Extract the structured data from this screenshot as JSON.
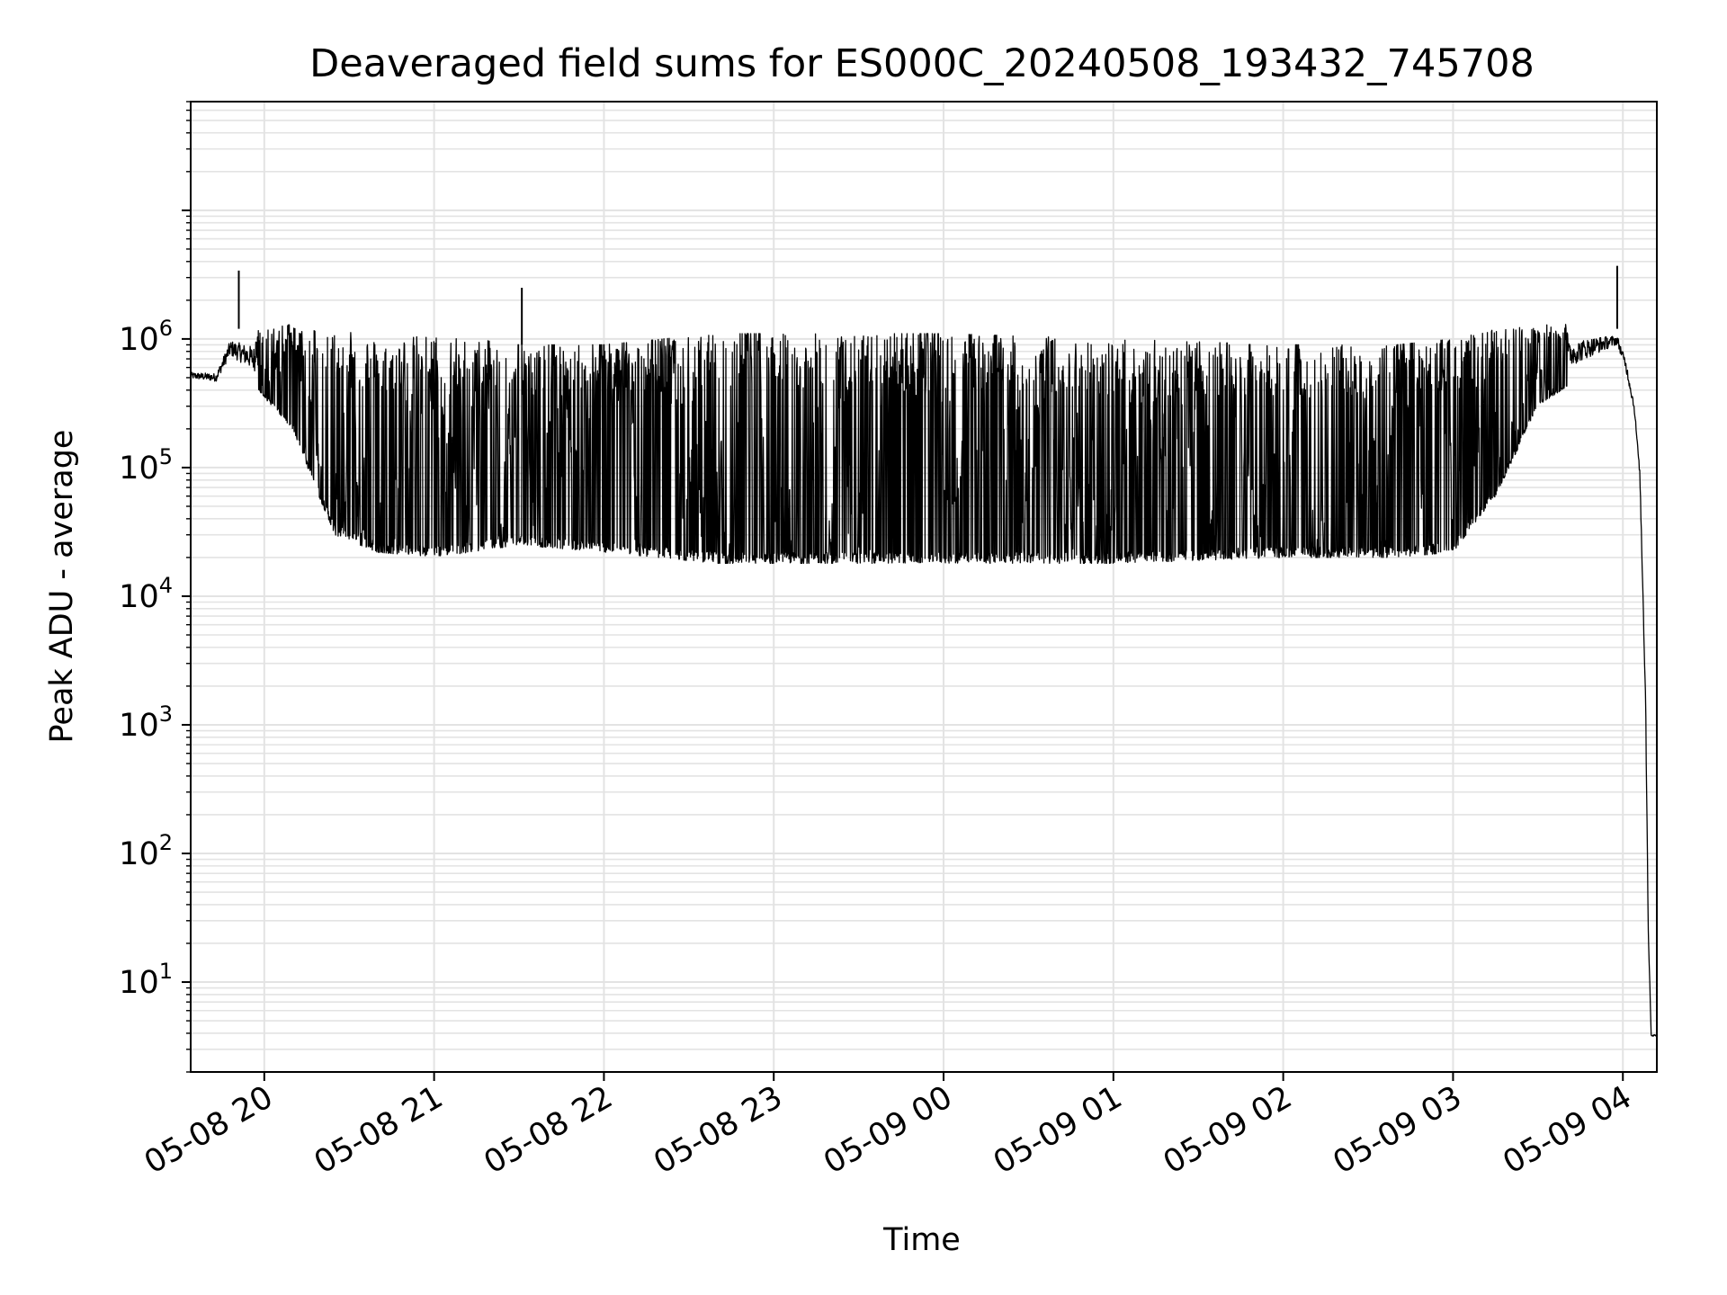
{
  "chart_data": {
    "type": "line",
    "title": "Deaveraged field sums for ES000C_20240508_193432_745708",
    "xlabel": "Time",
    "ylabel": "Peak ADU - average",
    "xlim": [
      "2024-05-08 19:34",
      "2024-05-09 04:12"
    ],
    "ylim": [
      2,
      70000000
    ],
    "yscale": "log",
    "grid": true,
    "line_color": "#000000",
    "x_ticks": [
      {
        "label": "05-08 20",
        "t": "2024-05-08 20:00"
      },
      {
        "label": "05-08 21",
        "t": "2024-05-08 21:00"
      },
      {
        "label": "05-08 22",
        "t": "2024-05-08 22:00"
      },
      {
        "label": "05-08 23",
        "t": "2024-05-08 23:00"
      },
      {
        "label": "05-09 00",
        "t": "2024-05-09 00:00"
      },
      {
        "label": "05-09 01",
        "t": "2024-05-09 01:00"
      },
      {
        "label": "05-09 02",
        "t": "2024-05-09 02:00"
      },
      {
        "label": "05-09 03",
        "t": "2024-05-09 03:00"
      },
      {
        "label": "05-09 04",
        "t": "2024-05-09 04:00"
      }
    ],
    "y_ticks": [
      {
        "base": "10",
        "exp": "1",
        "value": 10
      },
      {
        "base": "10",
        "exp": "2",
        "value": 100
      },
      {
        "base": "10",
        "exp": "3",
        "value": 1000
      },
      {
        "base": "10",
        "exp": "4",
        "value": 10000
      },
      {
        "base": "10",
        "exp": "5",
        "value": 100000
      },
      {
        "base": "10",
        "exp": "6",
        "value": 1000000
      }
    ],
    "envelope": [
      {
        "t": "2024-05-08 19:34",
        "lo": 450000,
        "hi": 600000
      },
      {
        "t": "2024-05-08 19:43",
        "lo": 420000,
        "hi": 600000
      },
      {
        "t": "2024-05-08 19:48",
        "lo": 600000,
        "hi": 1200000
      },
      {
        "t": "2024-05-08 19:52",
        "lo": 500000,
        "hi": 1200000
      },
      {
        "t": "2024-05-08 20:00",
        "lo": 350000,
        "hi": 1200000
      },
      {
        "t": "2024-05-08 20:10",
        "lo": 200000,
        "hi": 1300000
      },
      {
        "t": "2024-05-08 20:18",
        "lo": 70000,
        "hi": 1300000
      },
      {
        "t": "2024-05-08 20:25",
        "lo": 30000,
        "hi": 1200000
      },
      {
        "t": "2024-05-08 20:40",
        "lo": 22000,
        "hi": 1000000
      },
      {
        "t": "2024-05-08 21:00",
        "lo": 20000,
        "hi": 1100000
      },
      {
        "t": "2024-05-08 21:30",
        "lo": 25000,
        "hi": 900000
      },
      {
        "t": "2024-05-08 22:00",
        "lo": 22000,
        "hi": 900000
      },
      {
        "t": "2024-05-08 22:40",
        "lo": 18000,
        "hi": 1100000
      },
      {
        "t": "2024-05-09 00:00",
        "lo": 18000,
        "hi": 1100000
      },
      {
        "t": "2024-05-09 01:00",
        "lo": 18000,
        "hi": 1000000
      },
      {
        "t": "2024-05-09 02:00",
        "lo": 20000,
        "hi": 900000
      },
      {
        "t": "2024-05-09 02:40",
        "lo": 20000,
        "hi": 900000
      },
      {
        "t": "2024-05-09 03:00",
        "lo": 22000,
        "hi": 1000000
      },
      {
        "t": "2024-05-09 03:15",
        "lo": 60000,
        "hi": 1200000
      },
      {
        "t": "2024-05-09 03:30",
        "lo": 300000,
        "hi": 1300000
      },
      {
        "t": "2024-05-09 03:50",
        "lo": 600000,
        "hi": 1300000
      },
      {
        "t": "2024-05-09 03:58",
        "lo": 800000,
        "hi": 1200000
      },
      {
        "t": "2024-05-09 04:01",
        "lo": 500000,
        "hi": 800000
      },
      {
        "t": "2024-05-09 04:04",
        "lo": 250000,
        "hi": 350000
      },
      {
        "t": "2024-05-09 04:06",
        "lo": 80000,
        "hi": 100000
      },
      {
        "t": "2024-05-09 04:08",
        "lo": 1000,
        "hi": 3000
      },
      {
        "t": "2024-05-09 04:09",
        "lo": 20,
        "hi": 30
      },
      {
        "t": "2024-05-09 04:10",
        "lo": 3.7,
        "hi": 4
      },
      {
        "t": "2024-05-09 04:12",
        "lo": 3.7,
        "hi": 4
      }
    ],
    "spikes": [
      {
        "t": "2024-05-08 19:51",
        "value": 3400000
      },
      {
        "t": "2024-05-08 21:31",
        "value": 2500000
      },
      {
        "t": "2024-05-09 03:58",
        "value": 3700000
      }
    ]
  }
}
